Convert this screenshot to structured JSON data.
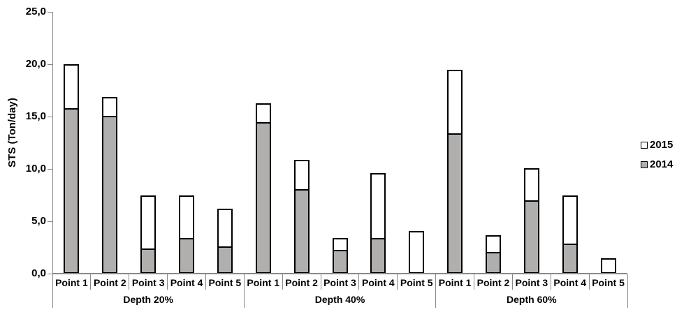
{
  "chart_data": {
    "type": "bar",
    "stacked": true,
    "title": "",
    "ylabel": "STS (Ton/day)",
    "xlabel": "",
    "ylim": [
      0,
      25
    ],
    "ytick_step": 5,
    "ytick_labels": [
      "0,0",
      "5,0",
      "10,0",
      "15,0",
      "20,0",
      "25,0"
    ],
    "decimal_style": "comma",
    "grid": false,
    "legend_position": "right",
    "groups": [
      {
        "label": "Depth 20%",
        "categories": [
          "Point 1",
          "Point 2",
          "Point 3",
          "Point 4",
          "Point 5"
        ]
      },
      {
        "label": "Depth 40%",
        "categories": [
          "Point 1",
          "Point 2",
          "Point 3",
          "Point 4",
          "Point 5"
        ]
      },
      {
        "label": "Depth 60%",
        "categories": [
          "Point 1",
          "Point 2",
          "Point 3",
          "Point 4",
          "Point 5"
        ]
      }
    ],
    "categories": [
      "Point 1",
      "Point 2",
      "Point 3",
      "Point 4",
      "Point 5",
      "Point 1",
      "Point 2",
      "Point 3",
      "Point 4",
      "Point 5",
      "Point 1",
      "Point 2",
      "Point 3",
      "Point 4",
      "Point 5"
    ],
    "series": [
      {
        "name": "2014",
        "color": "#b1aeae",
        "values": [
          15.8,
          15.1,
          2.4,
          3.4,
          2.6,
          14.5,
          8.1,
          2.3,
          3.4,
          0,
          13.4,
          2.1,
          7.0,
          2.9,
          0
        ]
      },
      {
        "name": "2015",
        "color": "#ffffff",
        "values": [
          4.2,
          1.8,
          5.1,
          4.1,
          3.6,
          1.8,
          2.8,
          1.1,
          6.2,
          4.1,
          6.1,
          1.6,
          3.1,
          4.6,
          1.5
        ]
      }
    ],
    "stack_totals": [
      20.0,
      16.9,
      7.5,
      7.5,
      6.2,
      16.3,
      10.9,
      3.4,
      9.6,
      4.1,
      19.5,
      3.7,
      10.1,
      7.5,
      1.5
    ],
    "legend_items": [
      {
        "label": "2015",
        "color": "#ffffff"
      },
      {
        "label": "2014",
        "color": "#b1aeae"
      }
    ]
  },
  "colors": {
    "bar_2014": "#b1aeae",
    "bar_2015": "#ffffff",
    "bar_border": "#000000",
    "axis": "#898989",
    "text": "#000000",
    "background": "#ffffff"
  }
}
